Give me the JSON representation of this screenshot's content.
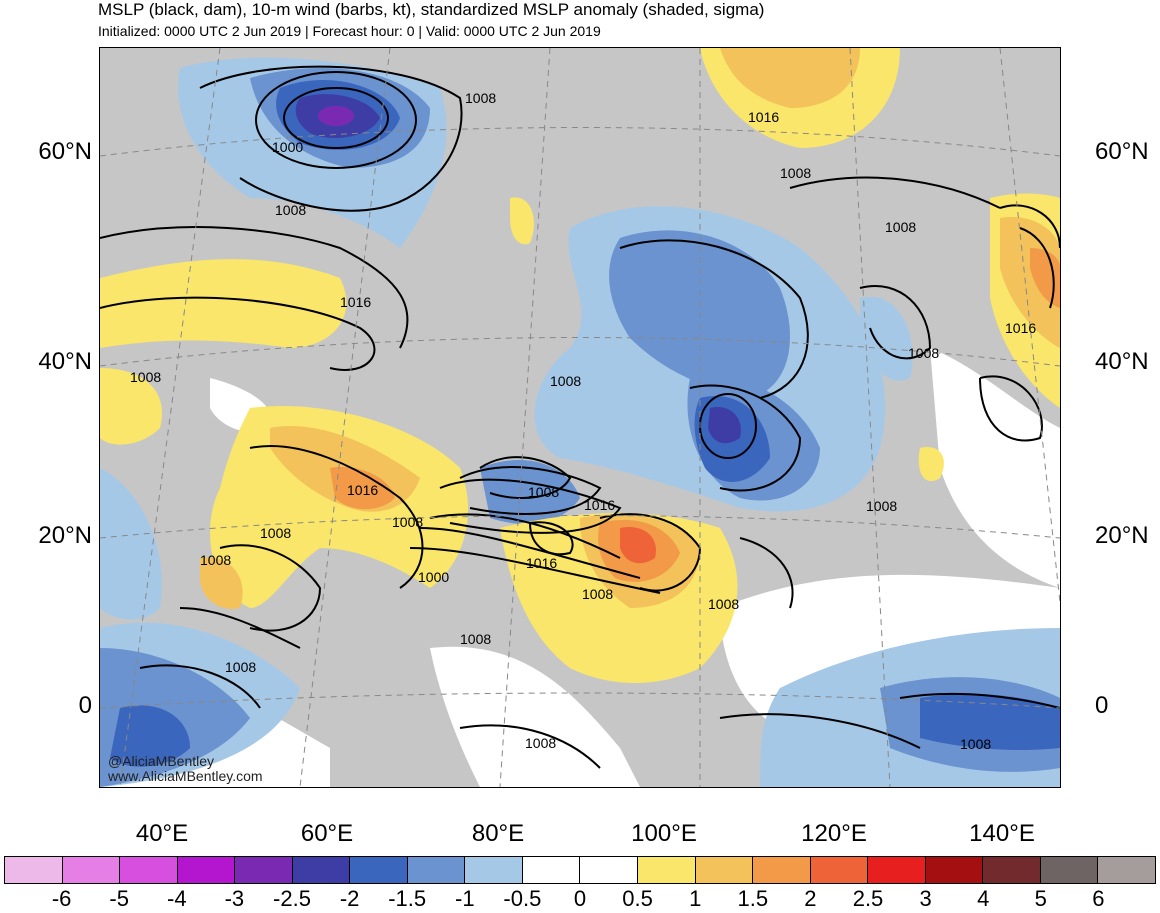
{
  "header": {
    "title": "MSLP (black, dam), 10-m wind (barbs, kt), standardized MSLP anomaly (shaded, sigma)",
    "subtitle": "Initialized: 0000 UTC 2 Jun 2019 | Forecast hour: 0 | Valid: 0000 UTC 2 Jun 2019"
  },
  "map": {
    "lat_labels": [
      "60°N",
      "40°N",
      "20°N",
      "0"
    ],
    "lon_labels": [
      "40°E",
      "60°E",
      "80°E",
      "100°E",
      "120°E",
      "140°E"
    ],
    "contour_labels": [
      "1008",
      "1000",
      "1008",
      "1016",
      "1008",
      "1016",
      "1008",
      "1008",
      "1008",
      "1008",
      "1016",
      "1008",
      "1016",
      "1016",
      "1008",
      "1008",
      "1000",
      "1016",
      "1008",
      "1008",
      "1008",
      "1008",
      "1008",
      "1008",
      "1008",
      "1008"
    ],
    "credits": [
      "@AliciaMBentley",
      "www.AliciaMBentley.com"
    ]
  },
  "colorbar": {
    "colors": [
      "#ecb9e8",
      "#e57ee5",
      "#d64fdf",
      "#b416d0",
      "#7a2ab2",
      "#3e3da6",
      "#3a66bd",
      "#6a93d0",
      "#a6c8e7",
      "#ffffff",
      "#ffffff",
      "#f9e66a",
      "#f3c25a",
      "#f29a48",
      "#ee6438",
      "#e81f1f",
      "#a40f12",
      "#732a2c",
      "#6f6464",
      "#a59c9c"
    ],
    "tick_labels": [
      "-6",
      "-5",
      "-4",
      "-3",
      "-2.5",
      "-2",
      "-1.5",
      "-1",
      "-0.5",
      "0",
      "0.5",
      "1",
      "1.5",
      "2",
      "2.5",
      "3",
      "4",
      "5",
      "6"
    ]
  }
}
